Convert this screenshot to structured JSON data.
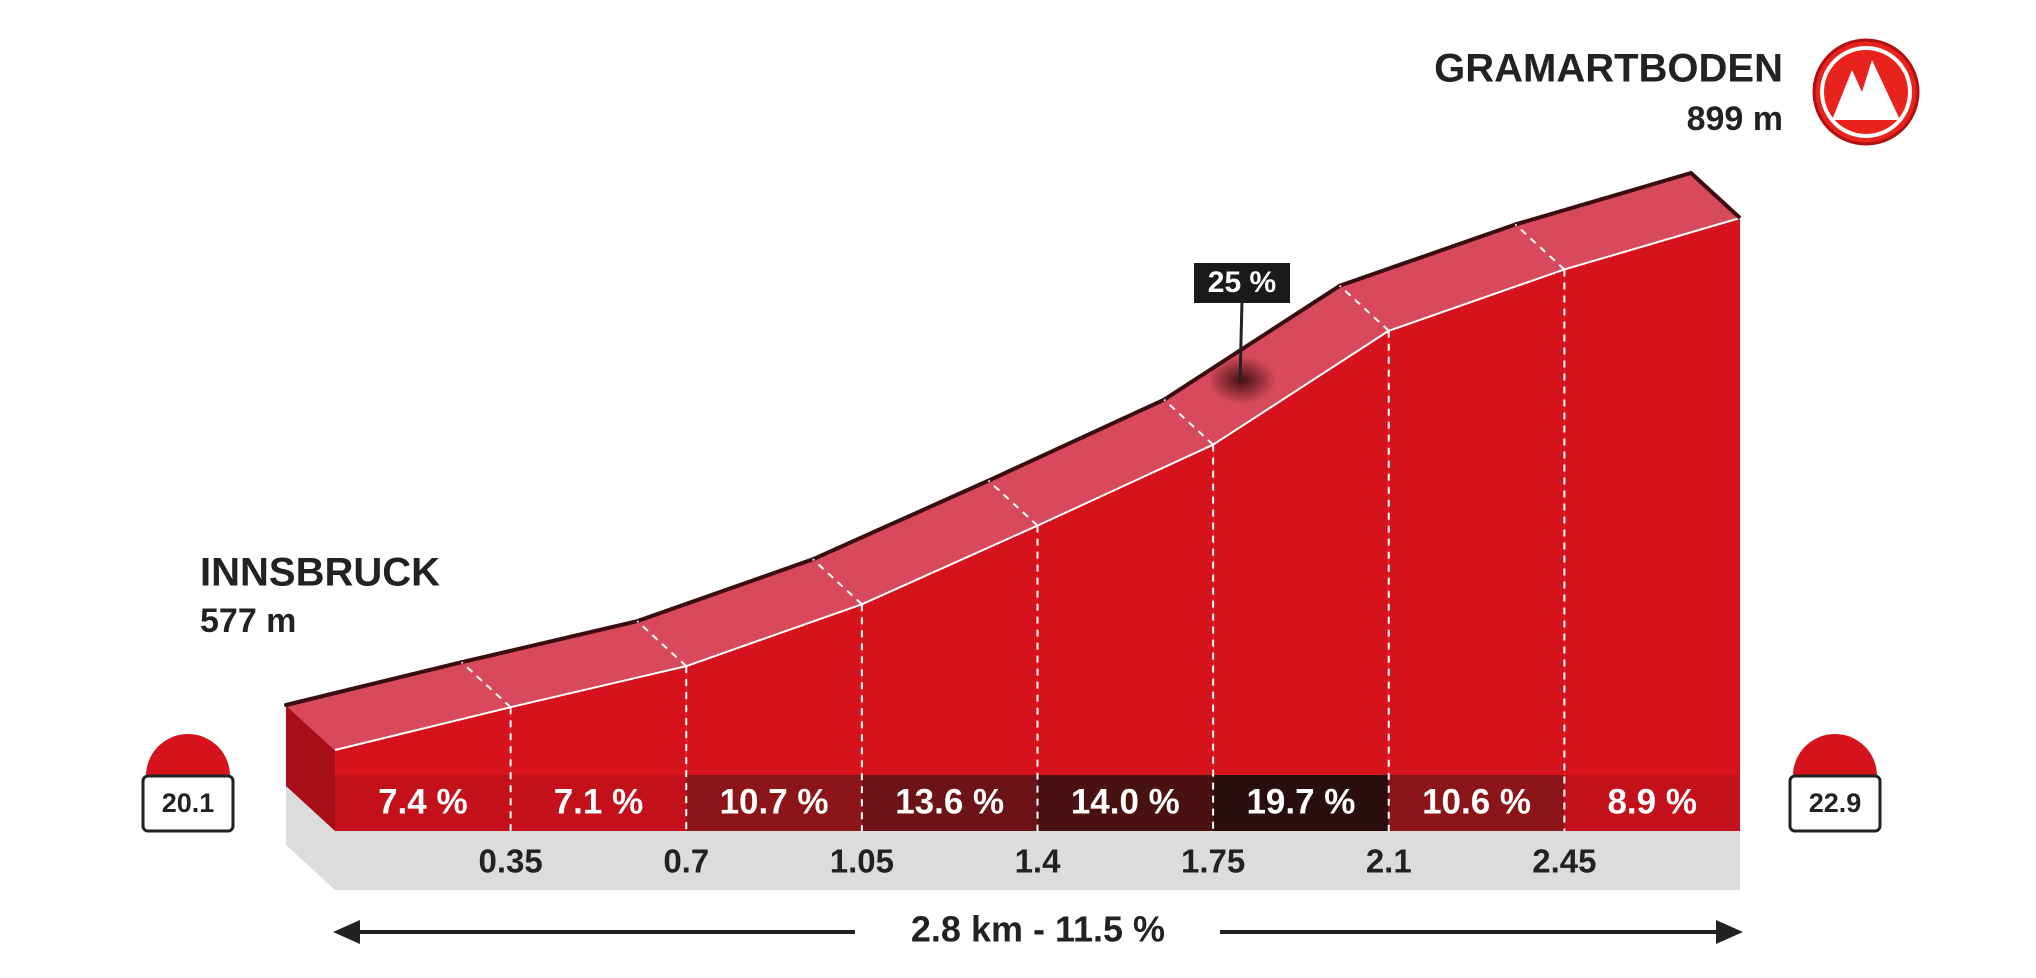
{
  "chart_data": {
    "type": "profile",
    "xlim": [
      0,
      2.8
    ],
    "xticks": [
      0.35,
      0.7,
      1.05,
      1.4,
      1.75,
      2.1,
      2.45
    ],
    "values": [
      7.4,
      7.1,
      10.7,
      13.6,
      14.0,
      19.7,
      10.6,
      8.9
    ],
    "value_labels": [
      "7.4 %",
      "7.1 %",
      "10.7 %",
      "13.6 %",
      "14.0 %",
      "19.7 %",
      "10.6 %",
      "8.9 %"
    ],
    "colors": [
      "#c4101b",
      "#c4101b",
      "#8c1519",
      "#6b1316",
      "#4a1112",
      "#2a0d0d",
      "#8c1519",
      "#c4101b"
    ],
    "profile_color": "#d6121c",
    "top_color": "#d84a5b",
    "start": {
      "name": "INNSBRUCK",
      "elevation": {
        "value": 577,
        "label": "577 m"
      },
      "km": 20.1
    },
    "finish": {
      "name": "GRAMARTBODEN",
      "elevation": {
        "value": 899,
        "label": "899 m"
      },
      "km": 22.9
    },
    "annotation": "25 %",
    "summary": "2.8 km - 11.5 %"
  }
}
